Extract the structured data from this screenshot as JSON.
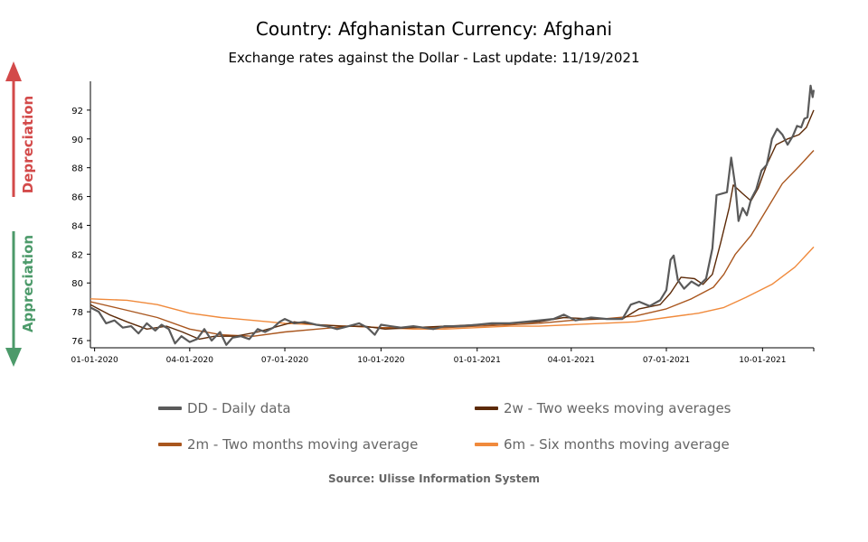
{
  "title": "Country: Afghanistan Currency: Afghani",
  "subtitle": "Exchange rates against the Dollar - Last update: 11/19/2021",
  "side_labels": {
    "depreciation": "Depreciation",
    "appreciation": "Appreciation"
  },
  "source": "Source: Ulisse Information System",
  "colors": {
    "daily": "#5a5a5a",
    "two_weeks": "#5c2a08",
    "two_months": "#a9561e",
    "six_months": "#f08a3c",
    "depreciation": "#d34a4a",
    "appreciation": "#4c9a6a"
  },
  "chart_data": {
    "type": "line",
    "x_tick_labels": [
      "01-01-2020",
      "04-01-2020",
      "07-01-2020",
      "10-01-2020",
      "01-01-2021",
      "04-01-2021",
      "07-01-2021",
      "10-01-2021"
    ],
    "x_tick_dates": [
      "2020-01-01",
      "2020-04-01",
      "2020-07-01",
      "2020-10-01",
      "2021-01-01",
      "2021-04-01",
      "2021-07-01",
      "2021-10-01"
    ],
    "xlim": [
      "2019-12-28",
      "2021-11-19"
    ],
    "y_ticks": [
      76,
      78,
      80,
      82,
      84,
      86,
      88,
      90,
      92
    ],
    "ylim": [
      75.5,
      94
    ],
    "legend": [
      {
        "key": "daily",
        "label": "DD - Daily data"
      },
      {
        "key": "two_weeks",
        "label": "2w - Two weeks moving averages"
      },
      {
        "key": "two_months",
        "label": "2m - Two months moving average"
      },
      {
        "key": "six_months",
        "label": "6m - Six months moving average"
      }
    ],
    "series": [
      {
        "key": "daily",
        "name": "DD - Daily data",
        "points": [
          [
            "2019-12-28",
            78.3
          ],
          [
            "2020-01-05",
            78.0
          ],
          [
            "2020-01-12",
            77.2
          ],
          [
            "2020-01-20",
            77.4
          ],
          [
            "2020-01-28",
            76.9
          ],
          [
            "2020-02-05",
            77.0
          ],
          [
            "2020-02-12",
            76.5
          ],
          [
            "2020-02-20",
            77.2
          ],
          [
            "2020-02-28",
            76.7
          ],
          [
            "2020-03-05",
            77.1
          ],
          [
            "2020-03-12",
            76.8
          ],
          [
            "2020-03-18",
            75.8
          ],
          [
            "2020-03-24",
            76.3
          ],
          [
            "2020-04-01",
            75.9
          ],
          [
            "2020-04-08",
            76.1
          ],
          [
            "2020-04-15",
            76.8
          ],
          [
            "2020-04-22",
            76.0
          ],
          [
            "2020-04-30",
            76.6
          ],
          [
            "2020-05-06",
            75.7
          ],
          [
            "2020-05-12",
            76.2
          ],
          [
            "2020-05-20",
            76.3
          ],
          [
            "2020-05-28",
            76.1
          ],
          [
            "2020-06-05",
            76.8
          ],
          [
            "2020-06-12",
            76.6
          ],
          [
            "2020-06-20",
            76.9
          ],
          [
            "2020-06-26",
            77.3
          ],
          [
            "2020-07-01",
            77.5
          ],
          [
            "2020-07-10",
            77.2
          ],
          [
            "2020-07-20",
            77.3
          ],
          [
            "2020-07-31",
            77.1
          ],
          [
            "2020-08-10",
            77.0
          ],
          [
            "2020-08-20",
            76.8
          ],
          [
            "2020-08-31",
            77.0
          ],
          [
            "2020-09-10",
            77.2
          ],
          [
            "2020-09-18",
            76.9
          ],
          [
            "2020-09-25",
            76.4
          ],
          [
            "2020-10-01",
            77.1
          ],
          [
            "2020-10-10",
            77.0
          ],
          [
            "2020-10-20",
            76.9
          ],
          [
            "2020-11-01",
            77.0
          ],
          [
            "2020-11-20",
            76.8
          ],
          [
            "2020-12-01",
            77.0
          ],
          [
            "2020-12-15",
            77.0
          ],
          [
            "2021-01-01",
            77.1
          ],
          [
            "2021-01-15",
            77.2
          ],
          [
            "2021-02-01",
            77.2
          ],
          [
            "2021-02-15",
            77.3
          ],
          [
            "2021-03-01",
            77.4
          ],
          [
            "2021-03-15",
            77.5
          ],
          [
            "2021-03-25",
            77.8
          ],
          [
            "2021-04-05",
            77.4
          ],
          [
            "2021-04-20",
            77.6
          ],
          [
            "2021-05-05",
            77.5
          ],
          [
            "2021-05-20",
            77.5
          ],
          [
            "2021-05-28",
            78.5
          ],
          [
            "2021-06-05",
            78.7
          ],
          [
            "2021-06-15",
            78.4
          ],
          [
            "2021-06-25",
            78.8
          ],
          [
            "2021-07-01",
            79.5
          ],
          [
            "2021-07-05",
            81.6
          ],
          [
            "2021-07-08",
            81.9
          ],
          [
            "2021-07-12",
            80.2
          ],
          [
            "2021-07-18",
            79.6
          ],
          [
            "2021-07-25",
            80.1
          ],
          [
            "2021-08-01",
            79.8
          ],
          [
            "2021-08-08",
            80.3
          ],
          [
            "2021-08-14",
            82.4
          ],
          [
            "2021-08-18",
            86.1
          ],
          [
            "2021-08-28",
            86.3
          ],
          [
            "2021-09-01",
            88.7
          ],
          [
            "2021-09-05",
            86.7
          ],
          [
            "2021-09-08",
            84.3
          ],
          [
            "2021-09-12",
            85.2
          ],
          [
            "2021-09-16",
            84.7
          ],
          [
            "2021-09-20",
            85.8
          ],
          [
            "2021-09-25",
            86.5
          ],
          [
            "2021-09-30",
            87.8
          ],
          [
            "2021-10-05",
            88.2
          ],
          [
            "2021-10-10",
            90.0
          ],
          [
            "2021-10-15",
            90.7
          ],
          [
            "2021-10-20",
            90.3
          ],
          [
            "2021-10-25",
            89.6
          ],
          [
            "2021-10-30",
            90.2
          ],
          [
            "2021-11-03",
            90.9
          ],
          [
            "2021-11-07",
            90.8
          ],
          [
            "2021-11-10",
            91.4
          ],
          [
            "2021-11-13",
            91.5
          ],
          [
            "2021-11-16",
            93.7
          ],
          [
            "2021-11-18",
            92.9
          ],
          [
            "2021-11-19",
            93.4
          ]
        ]
      },
      {
        "key": "two_weeks",
        "name": "2w - Two weeks moving averages",
        "points": [
          [
            "2019-12-28",
            78.5
          ],
          [
            "2020-01-15",
            77.8
          ],
          [
            "2020-02-01",
            77.3
          ],
          [
            "2020-02-20",
            76.8
          ],
          [
            "2020-03-10",
            77.0
          ],
          [
            "2020-03-25",
            76.6
          ],
          [
            "2020-04-10",
            76.1
          ],
          [
            "2020-04-25",
            76.3
          ],
          [
            "2020-05-15",
            76.3
          ],
          [
            "2020-06-05",
            76.6
          ],
          [
            "2020-06-25",
            77.0
          ],
          [
            "2020-07-10",
            77.3
          ],
          [
            "2020-08-01",
            77.1
          ],
          [
            "2020-08-25",
            77.0
          ],
          [
            "2020-09-15",
            77.0
          ],
          [
            "2020-10-05",
            76.8
          ],
          [
            "2020-11-01",
            76.9
          ],
          [
            "2020-12-01",
            77.0
          ],
          [
            "2021-01-01",
            77.1
          ],
          [
            "2021-02-01",
            77.2
          ],
          [
            "2021-03-01",
            77.3
          ],
          [
            "2021-03-25",
            77.6
          ],
          [
            "2021-04-20",
            77.5
          ],
          [
            "2021-05-20",
            77.5
          ],
          [
            "2021-06-05",
            78.2
          ],
          [
            "2021-06-25",
            78.5
          ],
          [
            "2021-07-05",
            79.3
          ],
          [
            "2021-07-15",
            80.4
          ],
          [
            "2021-07-28",
            80.3
          ],
          [
            "2021-08-05",
            79.9
          ],
          [
            "2021-08-14",
            80.6
          ],
          [
            "2021-08-22",
            82.8
          ],
          [
            "2021-08-30",
            85.2
          ],
          [
            "2021-09-03",
            86.8
          ],
          [
            "2021-09-12",
            86.2
          ],
          [
            "2021-09-20",
            85.7
          ],
          [
            "2021-09-27",
            86.6
          ],
          [
            "2021-10-05",
            88.2
          ],
          [
            "2021-10-14",
            89.6
          ],
          [
            "2021-10-25",
            90.0
          ],
          [
            "2021-11-05",
            90.3
          ],
          [
            "2021-11-12",
            90.8
          ],
          [
            "2021-11-19",
            92.0
          ]
        ]
      },
      {
        "key": "two_months",
        "name": "2m - Two months moving average",
        "points": [
          [
            "2019-12-28",
            78.7
          ],
          [
            "2020-02-01",
            78.1
          ],
          [
            "2020-03-01",
            77.6
          ],
          [
            "2020-04-01",
            76.8
          ],
          [
            "2020-05-01",
            76.4
          ],
          [
            "2020-06-01",
            76.3
          ],
          [
            "2020-07-01",
            76.6
          ],
          [
            "2020-08-01",
            76.8
          ],
          [
            "2020-09-01",
            77.0
          ],
          [
            "2020-10-01",
            76.9
          ],
          [
            "2020-11-01",
            76.9
          ],
          [
            "2020-12-01",
            76.9
          ],
          [
            "2021-01-01",
            77.0
          ],
          [
            "2021-02-01",
            77.1
          ],
          [
            "2021-03-01",
            77.2
          ],
          [
            "2021-04-01",
            77.4
          ],
          [
            "2021-05-01",
            77.5
          ],
          [
            "2021-06-01",
            77.7
          ],
          [
            "2021-07-01",
            78.2
          ],
          [
            "2021-07-25",
            78.9
          ],
          [
            "2021-08-15",
            79.7
          ],
          [
            "2021-08-25",
            80.6
          ],
          [
            "2021-09-05",
            82.0
          ],
          [
            "2021-09-20",
            83.3
          ],
          [
            "2021-10-05",
            85.1
          ],
          [
            "2021-10-20",
            86.9
          ],
          [
            "2021-11-05",
            88.1
          ],
          [
            "2021-11-19",
            89.2
          ]
        ]
      },
      {
        "key": "six_months",
        "name": "6m - Six months moving average",
        "points": [
          [
            "2019-12-28",
            78.9
          ],
          [
            "2020-02-01",
            78.8
          ],
          [
            "2020-03-01",
            78.5
          ],
          [
            "2020-04-01",
            77.9
          ],
          [
            "2020-05-01",
            77.6
          ],
          [
            "2020-06-01",
            77.4
          ],
          [
            "2020-07-01",
            77.2
          ],
          [
            "2020-08-01",
            77.1
          ],
          [
            "2020-09-01",
            77.0
          ],
          [
            "2020-10-01",
            76.9
          ],
          [
            "2020-11-01",
            76.8
          ],
          [
            "2020-12-01",
            76.8
          ],
          [
            "2021-01-01",
            76.9
          ],
          [
            "2021-02-01",
            77.0
          ],
          [
            "2021-03-01",
            77.0
          ],
          [
            "2021-04-01",
            77.1
          ],
          [
            "2021-05-01",
            77.2
          ],
          [
            "2021-06-01",
            77.3
          ],
          [
            "2021-07-01",
            77.6
          ],
          [
            "2021-08-01",
            77.9
          ],
          [
            "2021-08-25",
            78.3
          ],
          [
            "2021-09-15",
            79.0
          ],
          [
            "2021-10-10",
            79.9
          ],
          [
            "2021-11-01",
            81.1
          ],
          [
            "2021-11-19",
            82.5
          ]
        ]
      }
    ]
  }
}
